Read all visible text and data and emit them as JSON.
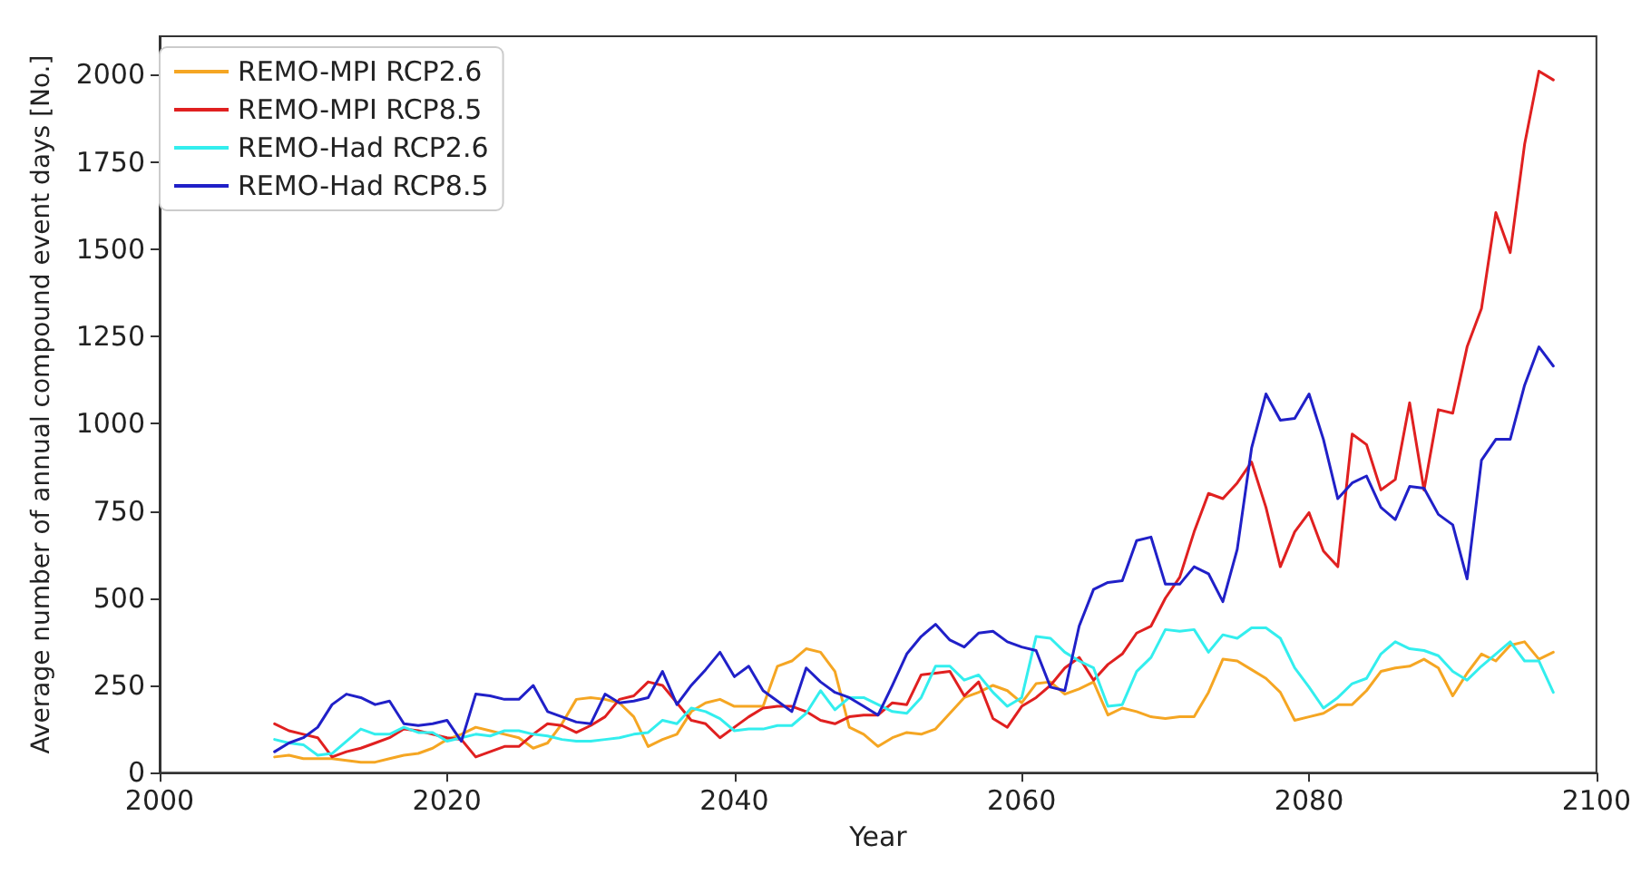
{
  "chart_data": {
    "type": "line",
    "xlabel": "Year",
    "ylabel": "Average number of annual compound event days [No.]",
    "x": [
      2008,
      2009,
      2010,
      2011,
      2012,
      2013,
      2014,
      2015,
      2016,
      2017,
      2018,
      2019,
      2020,
      2021,
      2022,
      2023,
      2024,
      2025,
      2026,
      2027,
      2028,
      2029,
      2030,
      2031,
      2032,
      2033,
      2034,
      2035,
      2036,
      2037,
      2038,
      2039,
      2040,
      2041,
      2042,
      2043,
      2044,
      2045,
      2046,
      2047,
      2048,
      2049,
      2050,
      2051,
      2052,
      2053,
      2054,
      2055,
      2056,
      2057,
      2058,
      2059,
      2060,
      2061,
      2062,
      2063,
      2064,
      2065,
      2066,
      2067,
      2068,
      2069,
      2070,
      2071,
      2072,
      2073,
      2074,
      2075,
      2076,
      2077,
      2078,
      2079,
      2080,
      2081,
      2082,
      2083,
      2084,
      2085,
      2086,
      2087,
      2088,
      2089,
      2090,
      2091,
      2092,
      2093,
      2094,
      2095,
      2096,
      2097
    ],
    "series": [
      {
        "name": "REMO-MPI RCP2.6",
        "color": "#f5a623",
        "values": [
          45,
          50,
          40,
          40,
          40,
          35,
          30,
          30,
          40,
          50,
          55,
          70,
          95,
          110,
          130,
          120,
          110,
          100,
          70,
          85,
          140,
          210,
          215,
          210,
          200,
          160,
          75,
          95,
          110,
          175,
          200,
          210,
          190,
          190,
          190,
          305,
          320,
          355,
          345,
          290,
          130,
          110,
          75,
          100,
          115,
          110,
          125,
          170,
          215,
          230,
          250,
          235,
          200,
          255,
          260,
          225,
          240,
          260,
          165,
          185,
          175,
          160,
          155,
          160,
          160,
          230,
          325,
          320,
          295,
          270,
          230,
          150,
          160,
          170,
          195,
          195,
          235,
          290,
          300,
          305,
          325,
          300,
          220,
          285,
          340,
          320,
          365,
          375,
          325,
          345
        ]
      },
      {
        "name": "REMO-MPI RCP8.5",
        "color": "#e02020",
        "values": [
          140,
          120,
          110,
          100,
          45,
          60,
          70,
          85,
          100,
          125,
          120,
          110,
          100,
          95,
          45,
          60,
          75,
          75,
          110,
          140,
          135,
          115,
          135,
          160,
          210,
          220,
          260,
          250,
          200,
          150,
          140,
          100,
          130,
          160,
          185,
          190,
          190,
          175,
          150,
          140,
          160,
          165,
          165,
          200,
          195,
          280,
          285,
          290,
          220,
          260,
          155,
          130,
          190,
          215,
          250,
          300,
          330,
          265,
          310,
          340,
          400,
          420,
          500,
          560,
          690,
          800,
          785,
          830,
          890,
          760,
          590,
          690,
          745,
          635,
          590,
          970,
          940,
          810,
          840,
          1060,
          810,
          1040,
          1030,
          1220,
          1330,
          1605,
          1490,
          1800,
          2010,
          1985
        ]
      },
      {
        "name": "REMO-Had RCP2.6",
        "color": "#33eeee",
        "values": [
          95,
          85,
          80,
          50,
          55,
          90,
          125,
          110,
          110,
          130,
          115,
          115,
          90,
          100,
          110,
          105,
          120,
          120,
          110,
          105,
          95,
          90,
          90,
          95,
          100,
          110,
          115,
          150,
          140,
          185,
          175,
          155,
          120,
          125,
          125,
          135,
          135,
          170,
          235,
          180,
          215,
          215,
          195,
          175,
          170,
          215,
          305,
          305,
          265,
          280,
          230,
          190,
          215,
          390,
          385,
          345,
          320,
          300,
          190,
          195,
          290,
          330,
          410,
          405,
          410,
          345,
          395,
          385,
          415,
          415,
          385,
          300,
          245,
          185,
          215,
          255,
          270,
          340,
          375,
          355,
          350,
          335,
          290,
          265,
          305,
          340,
          375,
          320,
          320,
          230
        ]
      },
      {
        "name": "REMO-Had RCP8.5",
        "color": "#2020c8",
        "values": [
          60,
          85,
          100,
          130,
          195,
          225,
          215,
          195,
          205,
          140,
          135,
          140,
          150,
          90,
          225,
          220,
          210,
          210,
          250,
          175,
          160,
          145,
          140,
          225,
          200,
          205,
          215,
          290,
          195,
          250,
          295,
          345,
          275,
          305,
          235,
          205,
          175,
          300,
          260,
          230,
          215,
          190,
          165,
          250,
          340,
          390,
          425,
          380,
          360,
          400,
          405,
          375,
          360,
          350,
          245,
          235,
          420,
          525,
          545,
          550,
          665,
          675,
          540,
          540,
          590,
          570,
          490,
          640,
          930,
          1085,
          1010,
          1015,
          1085,
          955,
          785,
          830,
          850,
          760,
          725,
          820,
          815,
          740,
          710,
          555,
          895,
          955,
          955,
          1110,
          1220,
          1165
        ]
      }
    ],
    "xlim": [
      2000,
      2100
    ],
    "xticks": [
      2000,
      2020,
      2040,
      2060,
      2080,
      2100
    ],
    "ylim": [
      0,
      2110
    ],
    "yticks": [
      0,
      250,
      500,
      750,
      1000,
      1250,
      1500,
      1750,
      2000
    ],
    "legend": "top left",
    "grid": false,
    "marker": "none",
    "line_style": "solid"
  }
}
